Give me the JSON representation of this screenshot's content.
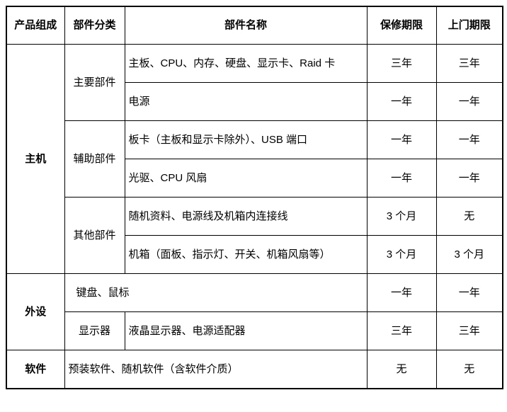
{
  "table": {
    "headers": {
      "product": "产品组成",
      "category": "部件分类",
      "part": "部件名称",
      "warranty": "保修期限",
      "onsite": "上门期限"
    },
    "groups": {
      "host": "主机",
      "peripheral": "外设",
      "software": "软件"
    },
    "categories": {
      "main": "主要部件",
      "aux": "辅助部件",
      "other": "其他部件",
      "monitor": "显示器"
    },
    "rows": [
      {
        "part": "主板、CPU、内存、硬盘、显示卡、Raid 卡",
        "warranty": "三年",
        "onsite": "三年"
      },
      {
        "part": "电源",
        "warranty": "一年",
        "onsite": "一年"
      },
      {
        "part": "板卡（主板和显示卡除外）、USB 端口",
        "warranty": "一年",
        "onsite": "一年"
      },
      {
        "part": "光驱、CPU 风扇",
        "warranty": "一年",
        "onsite": "一年"
      },
      {
        "part": "随机资料、电源线及机箱内连接线",
        "warranty": "3 个月",
        "onsite": "无"
      },
      {
        "part": "机箱（面板、指示灯、开关、机箱风扇等）",
        "warranty": "3 个月",
        "onsite": "3 个月"
      },
      {
        "part": "键盘、鼠标",
        "warranty": "一年",
        "onsite": "一年"
      },
      {
        "part": "液晶显示器、电源适配器",
        "warranty": "三年",
        "onsite": "三年"
      },
      {
        "part": "预装软件、随机软件（含软件介质）",
        "warranty": "无",
        "onsite": "无"
      }
    ]
  }
}
